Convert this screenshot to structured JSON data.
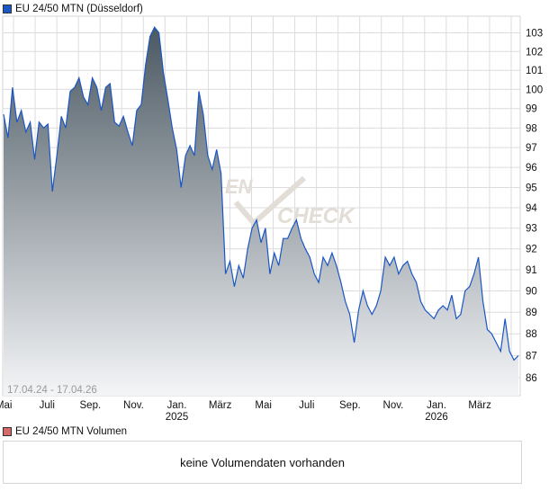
{
  "title": "EU 24/50 MTN (Düsseldorf)",
  "colors": {
    "line": "#1a56c4",
    "legend_price": "#1a56c4",
    "legend_volume": "#d46a6a",
    "fill_top": "#46545e",
    "fill_bottom": "#f4f5f7",
    "grid": "#dcdcdc"
  },
  "watermark": {
    "part1": "EN",
    "part2": "CHECK"
  },
  "chart_data": {
    "type": "area",
    "title": "EU 24/50 MTN (Düsseldorf)",
    "date_range": "17.04.24 - 17.04.26",
    "y_scale": "log",
    "ylim": [
      85.2,
      103.9
    ],
    "y_ticks": [
      86,
      87,
      88,
      89,
      90,
      91,
      92,
      93,
      94,
      95,
      96,
      97,
      98,
      99,
      100,
      101,
      102,
      103
    ],
    "x_ticks": [
      {
        "label": "Mai",
        "year": "",
        "month_index": 0.5
      },
      {
        "label": "Juli",
        "year": "",
        "month_index": 2.5
      },
      {
        "label": "Sep.",
        "year": "",
        "month_index": 4.5
      },
      {
        "label": "Nov.",
        "year": "",
        "month_index": 6.5
      },
      {
        "label": "Jan.",
        "year": "2025",
        "month_index": 8.5
      },
      {
        "label": "März",
        "year": "",
        "month_index": 10.5
      },
      {
        "label": "Mai",
        "year": "",
        "month_index": 12.5
      },
      {
        "label": "Juli",
        "year": "",
        "month_index": 14.5
      },
      {
        "label": "Sep.",
        "year": "",
        "month_index": 16.5
      },
      {
        "label": "Nov.",
        "year": "",
        "month_index": 18.5
      },
      {
        "label": "Jan.",
        "year": "2026",
        "month_index": 20.5
      },
      {
        "label": "März",
        "year": "",
        "month_index": 22.5
      }
    ],
    "grid": true,
    "series": [
      {
        "name": "EU 24/50 MTN",
        "values": [
          98.7,
          97.5,
          100.1,
          98.3,
          98.9,
          97.8,
          98.3,
          96.4,
          98.3,
          98.0,
          98.2,
          94.8,
          96.6,
          98.6,
          98.0,
          99.9,
          100.1,
          100.6,
          99.6,
          99.2,
          100.6,
          100.1,
          98.9,
          100.1,
          100.3,
          98.3,
          98.1,
          98.6,
          97.8,
          97.1,
          98.9,
          99.2,
          101.3,
          102.8,
          103.3,
          103.0,
          100.9,
          99.5,
          98.0,
          96.9,
          95.0,
          96.6,
          97.1,
          96.6,
          99.9,
          98.7,
          96.6,
          95.9,
          96.9,
          95.7,
          90.8,
          91.4,
          90.2,
          91.2,
          90.6,
          92.0,
          93.0,
          93.4,
          92.3,
          93.0,
          90.8,
          91.8,
          91.2,
          92.5,
          92.5,
          93.0,
          93.4,
          92.5,
          92.0,
          91.6,
          90.8,
          90.4,
          91.6,
          91.2,
          91.8,
          91.2,
          90.4,
          89.5,
          88.9,
          87.6,
          89.1,
          90.0,
          89.3,
          88.9,
          89.3,
          90.0,
          91.6,
          91.2,
          91.6,
          90.8,
          91.2,
          91.4,
          90.8,
          90.4,
          89.5,
          89.1,
          88.9,
          88.7,
          89.1,
          89.3,
          89.1,
          89.8,
          88.7,
          88.9,
          90.0,
          90.2,
          90.8,
          91.6,
          89.5,
          88.2,
          88.0,
          87.6,
          87.2,
          88.7,
          87.2,
          86.8,
          87.0
        ]
      }
    ]
  },
  "volume": {
    "legend": "EU 24/50 MTN Volumen",
    "empty_message": "keine Volumendaten vorhanden"
  }
}
